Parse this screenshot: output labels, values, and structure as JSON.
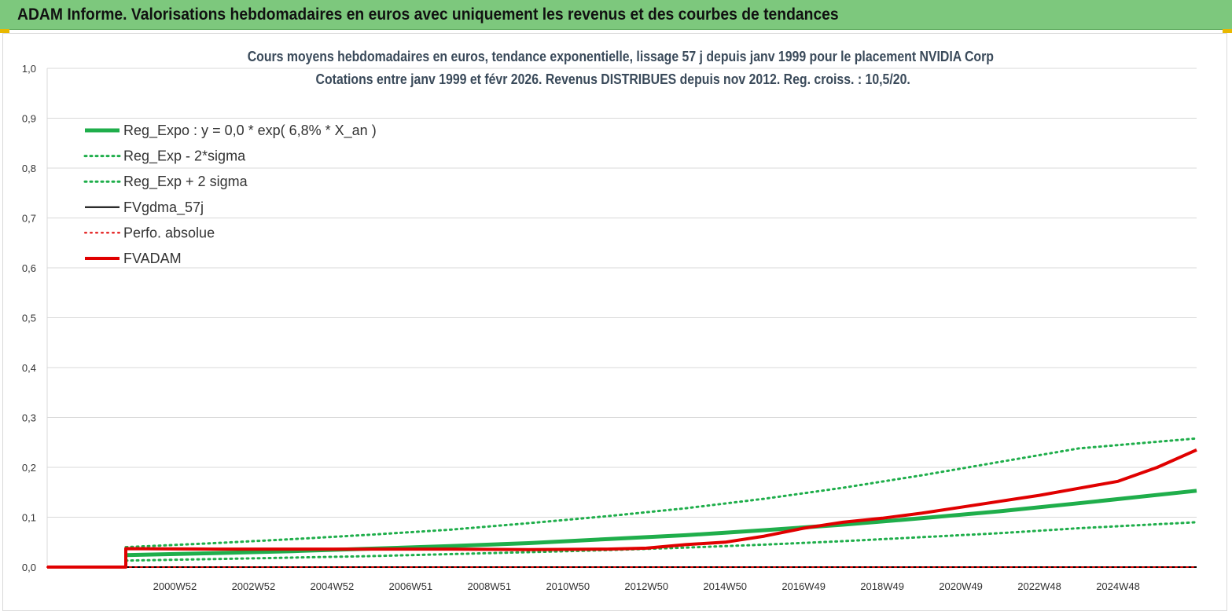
{
  "header": {
    "title": "ADAM Informe. Valorisations hebdomadaires en euros avec uniquement les revenus et des courbes de tendances",
    "background": "#7dc87d"
  },
  "chart_data": {
    "type": "line",
    "title": "Cours moyens hebdomadaires en euros, tendance exponentielle, lissage 57 j depuis janv 1999 pour le placement NVIDIA Corp",
    "subtitle": "Cotations entre janv 1999 et févr 2026. Revenus DISTRIBUES depuis nov 2012. Reg. croiss. : 10,5/20.",
    "xlabel": "",
    "ylabel": "",
    "ylim": [
      0,
      1
    ],
    "yticks": [
      "0,0",
      "0,1",
      "0,2",
      "0,3",
      "0,4",
      "0,5",
      "0,6",
      "0,7",
      "0,8",
      "0,9",
      "1,0"
    ],
    "xticks": [
      "2000W52",
      "2002W52",
      "2004W52",
      "2006W51",
      "2008W51",
      "2010W50",
      "2012W50",
      "2014W50",
      "2016W49",
      "2018W49",
      "2020W49",
      "2022W48",
      "2024W48"
    ],
    "xtick_years": [
      2001,
      2003,
      2005,
      2007,
      2009,
      2011,
      2013,
      2015,
      2017,
      2019,
      2021,
      2023,
      2025
    ],
    "xlim": [
      1997.75,
      2027.0
    ],
    "grid": true,
    "legend_position": "top-left",
    "series": [
      {
        "name": "Reg_Expo : y = 0,0 * exp( 6,8% *  X_an )",
        "color": "#1fae4b",
        "style": "solid",
        "width": 5,
        "x": [
          1999.75,
          2002,
          2004,
          2006,
          2008,
          2010,
          2012,
          2014,
          2016,
          2018,
          2020,
          2022,
          2024,
          2027.0
        ],
        "y": [
          0.024,
          0.028,
          0.032,
          0.037,
          0.042,
          0.048,
          0.056,
          0.064,
          0.074,
          0.085,
          0.098,
          0.112,
          0.128,
          0.153
        ]
      },
      {
        "name": "Reg_Exp - 2*sigma",
        "color": "#1fae4b",
        "style": "dotted",
        "width": 3,
        "x": [
          1999.75,
          2002,
          2004,
          2006,
          2008,
          2010,
          2012,
          2014,
          2016,
          2018,
          2020,
          2022,
          2024,
          2027.0
        ],
        "y": [
          0.013,
          0.016,
          0.019,
          0.022,
          0.026,
          0.03,
          0.034,
          0.039,
          0.045,
          0.052,
          0.06,
          0.068,
          0.078,
          0.09
        ]
      },
      {
        "name": "Reg_Exp + 2 sigma",
        "color": "#1fae4b",
        "style": "dotted",
        "width": 3,
        "x": [
          1999.75,
          2002,
          2004,
          2006,
          2008,
          2010,
          2012,
          2014,
          2016,
          2018,
          2020,
          2022,
          2024,
          2027.0
        ],
        "y": [
          0.04,
          0.048,
          0.056,
          0.065,
          0.075,
          0.088,
          0.102,
          0.118,
          0.137,
          0.159,
          0.184,
          0.211,
          0.238,
          0.258
        ]
      },
      {
        "name": "FVgdma_57j",
        "color": "#000000",
        "style": "solid",
        "width": 2,
        "x": [
          1997.75,
          1999.75,
          1999.75,
          2027.0
        ],
        "y": [
          0.0,
          0.0,
          0.0,
          0.0
        ]
      },
      {
        "name": "Perfo. absolue",
        "color": "#e00000",
        "style": "dotted",
        "width": 2,
        "x": [
          1997.75,
          1999.75,
          1999.75,
          2027.0
        ],
        "y": [
          0.0,
          0.0,
          0.0,
          0.0
        ]
      },
      {
        "name": "FVADAM",
        "color": "#e00000",
        "style": "solid",
        "width": 4,
        "x": [
          1997.75,
          1999.75,
          1999.75,
          2002,
          2004,
          2006,
          2008,
          2010,
          2012,
          2013,
          2014,
          2015,
          2016,
          2017,
          2018,
          2019,
          2020,
          2021,
          2022,
          2023,
          2024,
          2025,
          2026,
          2027.0
        ],
        "y": [
          0.0,
          0.0,
          0.037,
          0.036,
          0.036,
          0.036,
          0.036,
          0.035,
          0.036,
          0.038,
          0.045,
          0.05,
          0.062,
          0.078,
          0.09,
          0.098,
          0.108,
          0.12,
          0.132,
          0.144,
          0.158,
          0.172,
          0.2,
          0.235
        ]
      }
    ]
  }
}
